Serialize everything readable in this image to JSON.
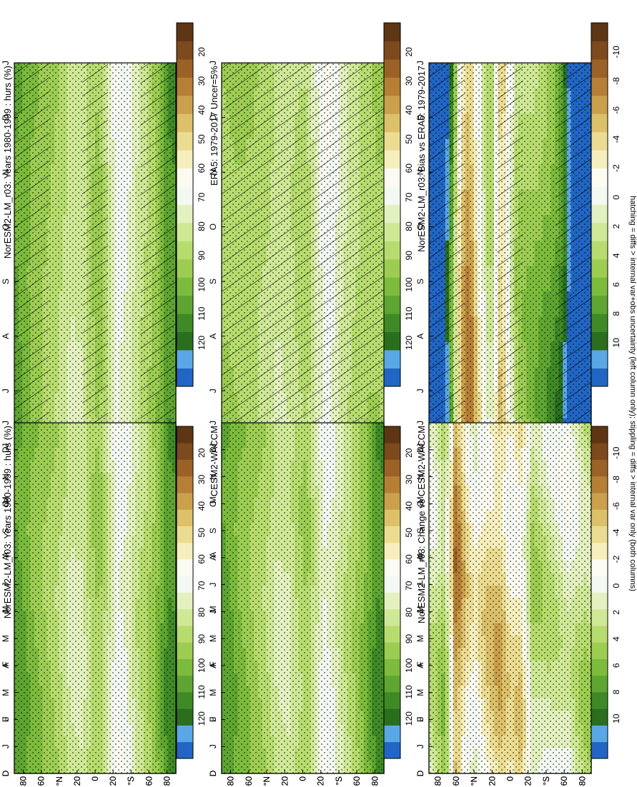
{
  "figure": {
    "footnote": "hatching = diffs > internal var+obs uncertainty (left column only); stippling = diffs > internal var only (both columns)",
    "orientation": "rotated 90 degrees clockwise"
  },
  "chart_data": [
    {
      "id": "left-top",
      "type": "heatmap",
      "title": "NorESM2-LM_r03: Years 1980-1999 : hurs (%)",
      "x_ticks": [
        "D",
        "J",
        "F",
        "M",
        "A",
        "M",
        "J",
        "J",
        "A",
        "S",
        "O",
        "N",
        "D",
        "J"
      ],
      "y_ticks": [
        "80",
        "60",
        "°N",
        "20",
        "0",
        "20",
        "°S",
        "60",
        "80"
      ],
      "y_range": [
        -90,
        90
      ],
      "colorbar_ticks": [
        "120",
        "110",
        "100",
        "90",
        "80",
        "70",
        "60",
        "50",
        "40",
        "30",
        "20"
      ],
      "colors": [
        "#2166c4",
        "#5aa7e6",
        "#2a6e1e",
        "#3f8a26",
        "#5ea531",
        "#7cbb3c",
        "#9ccd52",
        "#b7dc6e",
        "#cfe896",
        "#e3f1c0",
        "#f4f8f2",
        "#fbfbf2",
        "#f6efbd",
        "#ebdc91",
        "#dcc06a",
        "#caa04c",
        "#b67f36",
        "#9a6227",
        "#7d4a1d",
        "#5e3614"
      ],
      "hatching": "diagonal lines at high latitudes and near 20N/20S",
      "stippling": true,
      "zonal_profile": [
        {
          "lat": -85,
          "v": 100
        },
        {
          "lat": -70,
          "v": 93
        },
        {
          "lat": -55,
          "v": 88
        },
        {
          "lat": -40,
          "v": 83
        },
        {
          "lat": -28,
          "v": 76
        },
        {
          "lat": -15,
          "v": 75
        },
        {
          "lat": -5,
          "v": 83
        },
        {
          "lat": 5,
          "v": 87
        },
        {
          "lat": 15,
          "v": 76
        },
        {
          "lat": 25,
          "v": 66
        },
        {
          "lat": 35,
          "v": 69
        },
        {
          "lat": 45,
          "v": 77
        },
        {
          "lat": 58,
          "v": 84
        },
        {
          "lat": 70,
          "v": 92
        },
        {
          "lat": 82,
          "v": 104
        }
      ]
    },
    {
      "id": "right-top",
      "type": "heatmap",
      "title": "NorESM2-LM_r03: Years 1980-1999 : hurs (%)",
      "x_ticks": [
        "D",
        "J",
        "F",
        "M",
        "A",
        "M",
        "J",
        "J",
        "A",
        "S",
        "O",
        "N",
        "D",
        "J"
      ],
      "y_ticks": [
        "80",
        "60",
        "°N",
        "20",
        "0",
        "20",
        "°S",
        "60",
        "80"
      ],
      "y_range": [
        -90,
        90
      ],
      "colorbar_ticks": [
        "120",
        "110",
        "100",
        "90",
        "80",
        "70",
        "60",
        "50",
        "40",
        "30",
        "20"
      ],
      "colors": [
        "#2166c4",
        "#5aa7e6",
        "#2a6e1e",
        "#3f8a26",
        "#5ea531",
        "#7cbb3c",
        "#9ccd52",
        "#b7dc6e",
        "#cfe896",
        "#e3f1c0",
        "#f4f8f2",
        "#fbfbf2",
        "#f6efbd",
        "#ebdc91",
        "#dcc06a",
        "#caa04c",
        "#b67f36",
        "#9a6227",
        "#7d4a1d",
        "#5e3614"
      ],
      "stippling": true,
      "zonal_profile": [
        {
          "lat": -85,
          "v": 100
        },
        {
          "lat": -70,
          "v": 93
        },
        {
          "lat": -55,
          "v": 88
        },
        {
          "lat": -40,
          "v": 83
        },
        {
          "lat": -28,
          "v": 76
        },
        {
          "lat": -15,
          "v": 75
        },
        {
          "lat": -5,
          "v": 83
        },
        {
          "lat": 5,
          "v": 87
        },
        {
          "lat": 15,
          "v": 76
        },
        {
          "lat": 25,
          "v": 66
        },
        {
          "lat": 35,
          "v": 69
        },
        {
          "lat": 45,
          "v": 77
        },
        {
          "lat": 58,
          "v": 84
        },
        {
          "lat": 70,
          "v": 92
        },
        {
          "lat": 82,
          "v": 104
        }
      ]
    },
    {
      "id": "left-middle",
      "type": "heatmap",
      "title": "ERA5: 1979-2017 Uncer=5%",
      "x_ticks": [
        "D",
        "J",
        "F",
        "M",
        "A",
        "M",
        "J",
        "J",
        "A",
        "S",
        "O",
        "N",
        "D",
        "J"
      ],
      "y_ticks": [
        "80",
        "60",
        "°N",
        "20",
        "0",
        "20",
        "°S",
        "60",
        "80"
      ],
      "y_range": [
        -90,
        90
      ],
      "colorbar_ticks": [
        "120",
        "110",
        "100",
        "90",
        "80",
        "70",
        "60",
        "50",
        "40",
        "30",
        "20"
      ],
      "colors": [
        "#2166c4",
        "#5aa7e6",
        "#2a6e1e",
        "#3f8a26",
        "#5ea531",
        "#7cbb3c",
        "#9ccd52",
        "#b7dc6e",
        "#cfe896",
        "#e3f1c0",
        "#f4f8f2",
        "#fbfbf2",
        "#f6efbd",
        "#ebdc91",
        "#dcc06a",
        "#caa04c",
        "#b67f36",
        "#9a6227",
        "#7d4a1d",
        "#5e3614"
      ],
      "hatching": "diagonal lines across most latitudes",
      "stippling": true,
      "zonal_profile": [
        {
          "lat": -85,
          "v": 88
        },
        {
          "lat": -70,
          "v": 88
        },
        {
          "lat": -55,
          "v": 85
        },
        {
          "lat": -40,
          "v": 81
        },
        {
          "lat": -28,
          "v": 76
        },
        {
          "lat": -15,
          "v": 77
        },
        {
          "lat": -5,
          "v": 80
        },
        {
          "lat": 5,
          "v": 81
        },
        {
          "lat": 15,
          "v": 72
        },
        {
          "lat": 25,
          "v": 64
        },
        {
          "lat": 35,
          "v": 68
        },
        {
          "lat": 45,
          "v": 76
        },
        {
          "lat": 58,
          "v": 82
        },
        {
          "lat": 70,
          "v": 86
        },
        {
          "lat": 82,
          "v": 88
        }
      ]
    },
    {
      "id": "right-middle",
      "type": "heatmap",
      "title": "CESM2-WACCM",
      "x_ticks": [
        "D",
        "J",
        "F",
        "M",
        "A",
        "M",
        "J",
        "J",
        "A",
        "S",
        "O",
        "N",
        "D",
        "J"
      ],
      "y_ticks": [
        "80",
        "60",
        "°N",
        "20",
        "0",
        "20",
        "°S",
        "60",
        "80"
      ],
      "y_range": [
        -90,
        90
      ],
      "colorbar_ticks": [
        "120",
        "110",
        "100",
        "90",
        "80",
        "70",
        "60",
        "50",
        "40",
        "30",
        "20"
      ],
      "colors": [
        "#2166c4",
        "#5aa7e6",
        "#2a6e1e",
        "#3f8a26",
        "#5ea531",
        "#7cbb3c",
        "#9ccd52",
        "#b7dc6e",
        "#cfe896",
        "#e3f1c0",
        "#f4f8f2",
        "#fbfbf2",
        "#f6efbd",
        "#ebdc91",
        "#dcc06a",
        "#caa04c",
        "#b67f36",
        "#9a6227",
        "#7d4a1d",
        "#5e3614"
      ],
      "stippling": true,
      "zonal_profile": [
        {
          "lat": -85,
          "v": 100
        },
        {
          "lat": -70,
          "v": 93
        },
        {
          "lat": -55,
          "v": 88
        },
        {
          "lat": -40,
          "v": 83
        },
        {
          "lat": -28,
          "v": 76
        },
        {
          "lat": -15,
          "v": 76
        },
        {
          "lat": -5,
          "v": 83
        },
        {
          "lat": 5,
          "v": 86
        },
        {
          "lat": 15,
          "v": 75
        },
        {
          "lat": 25,
          "v": 67
        },
        {
          "lat": 35,
          "v": 71
        },
        {
          "lat": 45,
          "v": 78
        },
        {
          "lat": 58,
          "v": 85
        },
        {
          "lat": 70,
          "v": 93
        },
        {
          "lat": 82,
          "v": 104
        }
      ]
    },
    {
      "id": "left-bottom",
      "type": "heatmap",
      "title": "NorESM2-LM_r03: Bias vs ERA5: 1979-2017",
      "x_ticks": [
        "D",
        "J",
        "F",
        "M",
        "A",
        "M",
        "J",
        "J",
        "A",
        "S",
        "O",
        "N",
        "D",
        "J"
      ],
      "y_ticks": [
        "80",
        "60",
        "°N",
        "20",
        "0",
        "20",
        "°S",
        "60",
        "80"
      ],
      "y_range": [
        -90,
        90
      ],
      "colorbar_ticks": [
        "10",
        "8",
        "6",
        "4",
        "2",
        "0",
        "-2",
        "-4",
        "-6",
        "-8",
        "-10"
      ],
      "colors": [
        "#2166c4",
        "#5aa7e6",
        "#2a6e1e",
        "#3f8a26",
        "#5ea531",
        "#7cbb3c",
        "#9ccd52",
        "#b7dc6e",
        "#cfe896",
        "#e3f1c0",
        "#f4f8f2",
        "#fbfbf2",
        "#f6efbd",
        "#ebdc91",
        "#dcc06a",
        "#caa04c",
        "#b67f36",
        "#9a6227",
        "#7d4a1d",
        "#5e3614"
      ],
      "hatching": "diagonal lines at both poles and in negative-bias bands",
      "stippling": true,
      "zonal_profile": [
        {
          "lat": -85,
          "v": 12
        },
        {
          "lat": -72,
          "v": 11
        },
        {
          "lat": -62,
          "v": 4
        },
        {
          "lat": -55,
          "v": -3
        },
        {
          "lat": -45,
          "v": -6
        },
        {
          "lat": -35,
          "v": -2
        },
        {
          "lat": -22,
          "v": 2
        },
        {
          "lat": -10,
          "v": -5
        },
        {
          "lat": -2,
          "v": -2
        },
        {
          "lat": 8,
          "v": 2
        },
        {
          "lat": 25,
          "v": 3
        },
        {
          "lat": 45,
          "v": 5
        },
        {
          "lat": 58,
          "v": 7
        },
        {
          "lat": 70,
          "v": 12
        },
        {
          "lat": 82,
          "v": 12
        }
      ]
    },
    {
      "id": "right-bottom",
      "type": "heatmap",
      "title": "NorESM2-LM_r03: Change vs CESM2-WACCM",
      "x_ticks": [
        "D",
        "J",
        "F",
        "M",
        "A",
        "M",
        "J",
        "J",
        "A",
        "S",
        "O",
        "N",
        "D",
        "J"
      ],
      "y_ticks": [
        "80",
        "60",
        "°N",
        "20",
        "0",
        "20",
        "°S",
        "60",
        "80"
      ],
      "y_range": [
        -90,
        90
      ],
      "colorbar_ticks": [
        "10",
        "8",
        "6",
        "4",
        "2",
        "0",
        "-2",
        "-4",
        "-6",
        "-8",
        "-10"
      ],
      "colors": [
        "#2166c4",
        "#5aa7e6",
        "#2a6e1e",
        "#3f8a26",
        "#5ea531",
        "#7cbb3c",
        "#9ccd52",
        "#b7dc6e",
        "#cfe896",
        "#e3f1c0",
        "#f4f8f2",
        "#fbfbf2",
        "#f6efbd",
        "#ebdc91",
        "#dcc06a",
        "#caa04c",
        "#b67f36",
        "#9a6227",
        "#7d4a1d",
        "#5e3614"
      ],
      "stippling": true,
      "zonal_profile": [
        {
          "lat": -85,
          "v": 1
        },
        {
          "lat": -72,
          "v": 3
        },
        {
          "lat": -60,
          "v": -6
        },
        {
          "lat": -50,
          "v": -3
        },
        {
          "lat": -40,
          "v": -1
        },
        {
          "lat": -25,
          "v": -3
        },
        {
          "lat": -10,
          "v": -4
        },
        {
          "lat": 0,
          "v": -2
        },
        {
          "lat": 12,
          "v": -3
        },
        {
          "lat": 25,
          "v": 2
        },
        {
          "lat": 45,
          "v": 1
        },
        {
          "lat": 65,
          "v": 0
        },
        {
          "lat": 82,
          "v": 2
        }
      ]
    }
  ]
}
